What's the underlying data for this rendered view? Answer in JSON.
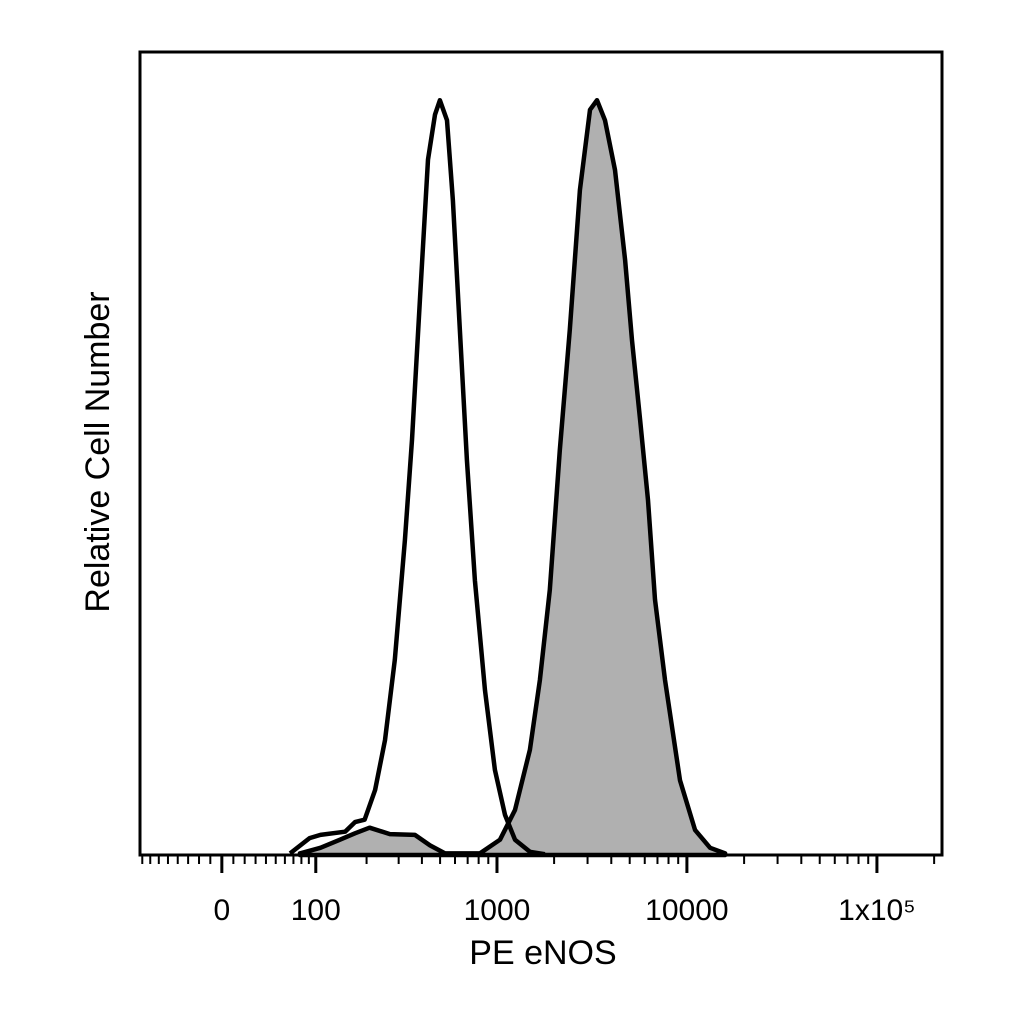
{
  "chart_data": {
    "type": "histogram-overlay",
    "x_label": "PE eNOS",
    "y_label": "Relative Cell Number",
    "xscale": "biexponential",
    "xlim": [
      -83,
      220000
    ],
    "ylim": [
      0,
      100
    ],
    "xticks": [
      0,
      100,
      1000,
      10000,
      {
        "value": 100000,
        "label": "1x10⁵"
      }
    ],
    "xminor_ticks": [
      -80,
      -70,
      -60,
      -50,
      -40,
      -30,
      -20,
      -10,
      10,
      20,
      30,
      40,
      50,
      60,
      70,
      80,
      90,
      200,
      300,
      400,
      500,
      600,
      700,
      800,
      900,
      2000,
      3000,
      4000,
      5000,
      6000,
      7000,
      8000,
      9000,
      20000,
      30000,
      40000,
      50000,
      60000,
      70000,
      80000,
      90000,
      200000
    ],
    "series": [
      {
        "color": "#b0b0b0",
        "filled": true,
        "x": [
          78,
          107,
          141,
          172,
          208,
          269,
          367,
          442,
          531,
          813,
          1037,
          1244,
          1491,
          1684,
          1899,
          2143,
          2420,
          2733,
          3090,
          3363,
          3707,
          4186,
          4728,
          5143,
          5669,
          6243,
          6790,
          7667,
          9200,
          11040,
          13240,
          15890
        ],
        "values": [
          0.2,
          0.9,
          1.9,
          2.7,
          3.4,
          2.6,
          2.5,
          1.2,
          0.2,
          0.2,
          1.9,
          5.6,
          13.1,
          21.8,
          33.0,
          50.4,
          65.4,
          82.8,
          92.8,
          94.0,
          91.5,
          85.3,
          74.1,
          64.1,
          54.2,
          44.2,
          31.8,
          21.8,
          9.3,
          3.1,
          0.9,
          0.2
        ]
      },
      {
        "color": "#000000",
        "filled": false,
        "x": [
          66,
          91,
          107,
          151,
          172,
          195,
          223,
          253,
          286,
          324,
          354,
          390,
          431,
          470,
          499,
          544,
          585,
          637,
          694,
          765,
          864,
          975,
          1102,
          1244,
          1491,
          1788
        ],
        "values": [
          0.2,
          2.1,
          2.5,
          2.9,
          4.1,
          4.4,
          8.1,
          14.3,
          24.3,
          39.2,
          51.7,
          69.1,
          86.6,
          92.2,
          94.0,
          91.5,
          81.5,
          65.3,
          49.2,
          34.2,
          20.5,
          10.6,
          5.0,
          1.9,
          0.4,
          0.1
        ]
      }
    ]
  }
}
